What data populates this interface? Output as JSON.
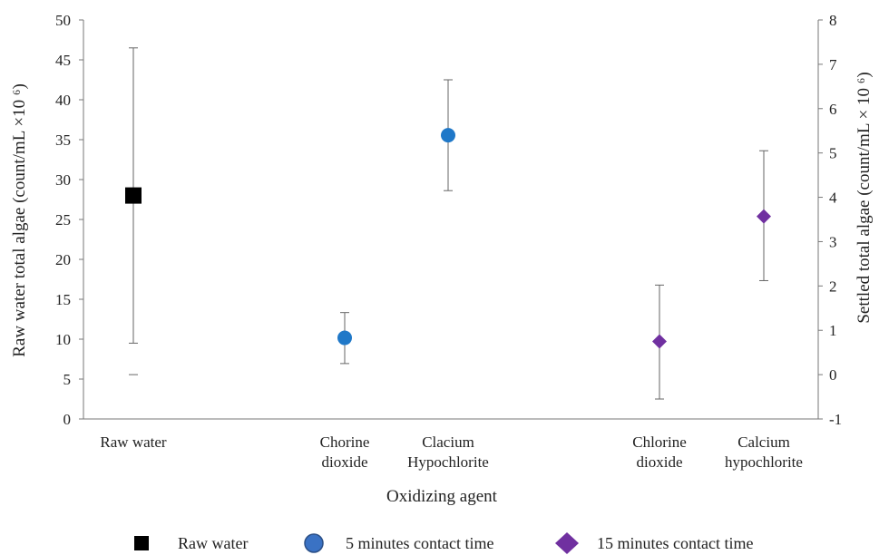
{
  "chart_data": {
    "type": "scatter",
    "xlabel": "Oxidizing agent",
    "ylabel_left": "Raw water  total algae (count/mL ×10 ⁶)",
    "ylabel_right": "Settled total algae (count/mL × 10 ⁶)",
    "ylim_left": [
      0,
      50
    ],
    "yticks_left": [
      0,
      5,
      10,
      15,
      20,
      25,
      30,
      35,
      40,
      45,
      50
    ],
    "ylim_right": [
      -1,
      8
    ],
    "yticks_right": [
      -1,
      0,
      1,
      2,
      3,
      4,
      5,
      6,
      7,
      8
    ],
    "grid": false,
    "legend_position": "bottom",
    "categories": [
      {
        "id": "raw",
        "lines": [
          "Raw water"
        ]
      },
      {
        "id": "clo2_5",
        "lines": [
          "Chorine",
          "dioxide"
        ]
      },
      {
        "id": "caocl_5",
        "lines": [
          "Clacium",
          "Hypochlorite"
        ]
      },
      {
        "id": "clo2_15",
        "lines": [
          "Chlorine",
          "dioxide"
        ]
      },
      {
        "id": "caocl_15",
        "lines": [
          "Calcium",
          "hypochlorite"
        ]
      }
    ],
    "series": [
      {
        "name": "Raw water",
        "marker": "square",
        "color": "#000000",
        "axis": "left",
        "points": [
          {
            "category": "raw",
            "y": 28,
            "err_low": 9.5,
            "err_high": 46.5
          }
        ]
      },
      {
        "name": "5 minutes contact time",
        "marker": "circle",
        "color": "#1f78c8",
        "axis": "right",
        "points": [
          {
            "category": "clo2_5",
            "y": 0.83,
            "err_low": 0.25,
            "err_high": 1.4
          },
          {
            "category": "caocl_5",
            "y": 5.4,
            "err_low": 4.15,
            "err_high": 6.65
          }
        ]
      },
      {
        "name": "15 minutes contact time",
        "marker": "diamond",
        "color": "#7030a0",
        "axis": "right",
        "points": [
          {
            "category": "clo2_15",
            "y": 0.75,
            "err_low": -0.55,
            "err_high": 2.02
          },
          {
            "category": "caocl_15",
            "y": 3.57,
            "err_low": 2.12,
            "err_high": 5.05
          }
        ]
      }
    ],
    "annotations": [
      {
        "type": "tick-mark",
        "category": "raw",
        "axis": "right",
        "y": 0
      }
    ]
  }
}
